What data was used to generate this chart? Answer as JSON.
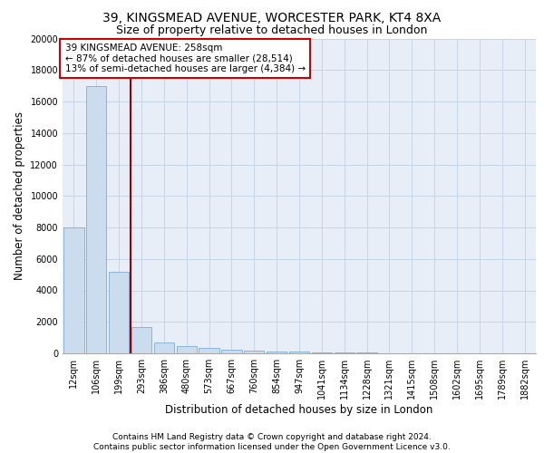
{
  "title_line1": "39, KINGSMEAD AVENUE, WORCESTER PARK, KT4 8XA",
  "title_line2": "Size of property relative to detached houses in London",
  "xlabel": "Distribution of detached houses by size in London",
  "ylabel": "Number of detached properties",
  "annotation_line1": "39 KINGSMEAD AVENUE: 258sqm",
  "annotation_line2": "← 87% of detached houses are smaller (28,514)",
  "annotation_line3": "13% of semi-detached houses are larger (4,384) →",
  "footer_line1": "Contains HM Land Registry data © Crown copyright and database right 2024.",
  "footer_line2": "Contains public sector information licensed under the Open Government Licence v3.0.",
  "categories": [
    "12sqm",
    "106sqm",
    "199sqm",
    "293sqm",
    "386sqm",
    "480sqm",
    "573sqm",
    "667sqm",
    "760sqm",
    "854sqm",
    "947sqm",
    "1041sqm",
    "1134sqm",
    "1228sqm",
    "1321sqm",
    "1415sqm",
    "1508sqm",
    "1602sqm",
    "1695sqm",
    "1789sqm",
    "1882sqm"
  ],
  "values": [
    8000,
    17000,
    5200,
    1650,
    700,
    450,
    320,
    230,
    180,
    130,
    90,
    60,
    40,
    30,
    20,
    15,
    10,
    8,
    5,
    3,
    2
  ],
  "bar_color": "#ccdcef",
  "bar_edge_color": "#7eadd4",
  "vline_x": 2.5,
  "vline_color": "#990000",
  "vline_linewidth": 1.5,
  "annotation_box_color": "#cc0000",
  "annotation_box_facecolor": "white",
  "ylim": [
    0,
    20000
  ],
  "yticks": [
    0,
    2000,
    4000,
    6000,
    8000,
    10000,
    12000,
    14000,
    16000,
    18000,
    20000
  ],
  "grid_color": "#c8d4e8",
  "background_color": "#e8eef8",
  "title_fontsize": 10,
  "subtitle_fontsize": 9,
  "axis_label_fontsize": 8.5,
  "tick_fontsize": 7,
  "annotation_fontsize": 7.5,
  "footer_fontsize": 6.5
}
